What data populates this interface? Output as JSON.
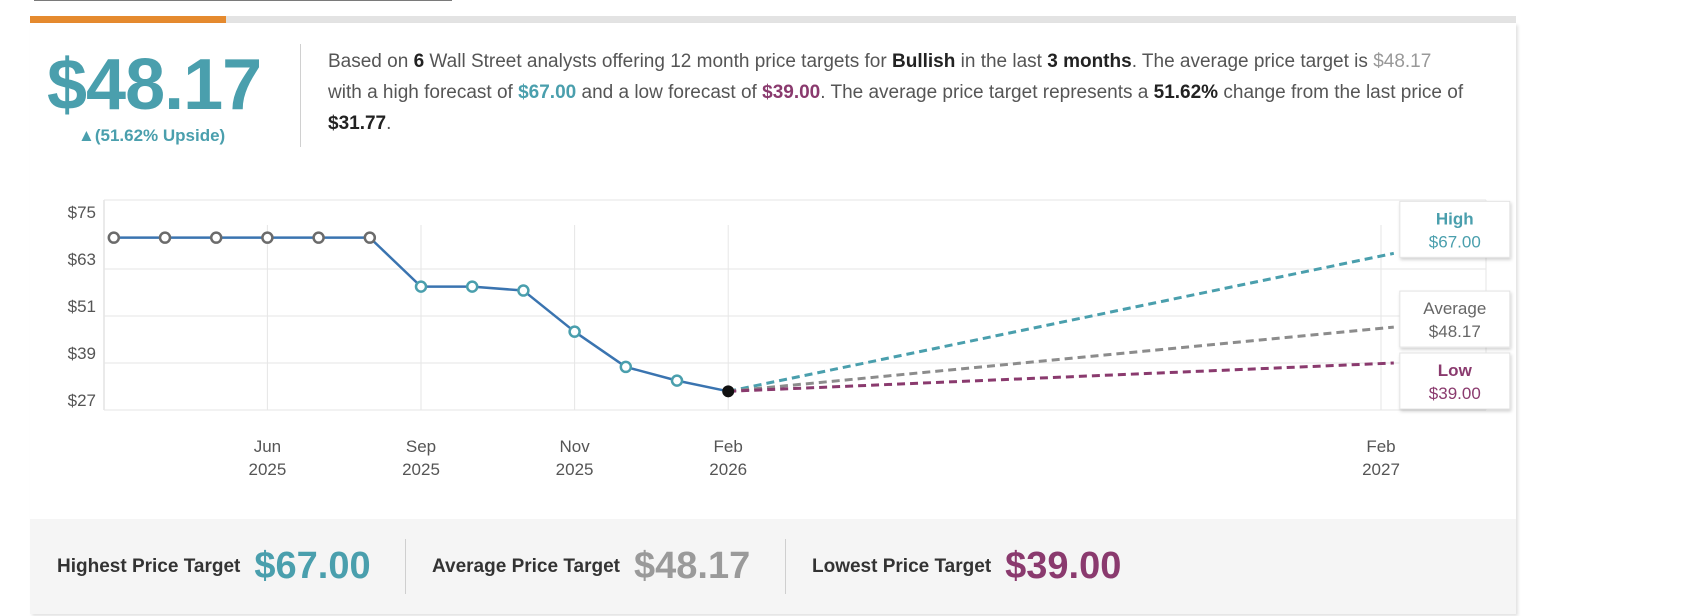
{
  "summary": {
    "price": "$48.17",
    "upside": "▲(51.62% Upside)",
    "text": {
      "t1": "Based on ",
      "analysts": "6",
      "t2": " Wall Street analysts offering 12 month price targets for ",
      "company": "Bullish",
      "t3": " in the last ",
      "period": "3 months",
      "t4": ". The average price target is ",
      "avg": "$48.17",
      "t5": " with a high forecast of ",
      "high": "$67.00",
      "t6": " and a low forecast of ",
      "low": "$39.00",
      "t7": ". The average price target represents a ",
      "change": "51.62%",
      "t8": " change from the last price of ",
      "last": "$31.77",
      "t9": "."
    }
  },
  "colors": {
    "high": "#4a9fad",
    "average": "#8c8c8c",
    "low": "#8a3a6e",
    "history": "#3a74b0",
    "upside": "#4a9fad"
  },
  "chart_data": {
    "type": "line",
    "y_ticks": [
      "$75",
      "$63",
      "$51",
      "$39",
      "$27"
    ],
    "y_tick_values": [
      75,
      63,
      51,
      39,
      27
    ],
    "ylim": [
      27,
      75
    ],
    "x_ticks": [
      {
        "month": "Jun",
        "year": "2025",
        "t": 2
      },
      {
        "month": "Sep",
        "year": "2025",
        "t": 5
      },
      {
        "month": "Nov",
        "year": "2025",
        "t": 8
      },
      {
        "month": "Feb",
        "year": "2026",
        "t": 11
      },
      {
        "month": "Feb",
        "year": "2027",
        "t": 23.75
      }
    ],
    "history": [
      {
        "t": -1,
        "v": 71
      },
      {
        "t": 0,
        "v": 71
      },
      {
        "t": 1,
        "v": 71
      },
      {
        "t": 2,
        "v": 71
      },
      {
        "t": 3,
        "v": 71
      },
      {
        "t": 4,
        "v": 71
      },
      {
        "t": 5,
        "v": 58.5
      },
      {
        "t": 6,
        "v": 58.5
      },
      {
        "t": 7,
        "v": 57.5
      },
      {
        "t": 8,
        "v": 47
      },
      {
        "t": 9,
        "v": 38
      },
      {
        "t": 10,
        "v": 34.5
      }
    ],
    "last_price": {
      "t": 11,
      "v": 31.77
    },
    "forecasts": [
      {
        "name": "High",
        "value": 67.0,
        "label": "$67.00"
      },
      {
        "name": "Average",
        "value": 48.17,
        "label": "$48.17"
      },
      {
        "name": "Low",
        "value": 39.0,
        "label": "$39.00"
      }
    ],
    "forecast_end_t": 24
  },
  "footer": {
    "highest_label": "Highest Price Target",
    "highest_value": "$67.00",
    "average_label": "Average Price Target",
    "average_value": "$48.17",
    "lowest_label": "Lowest Price Target",
    "lowest_value": "$39.00"
  }
}
